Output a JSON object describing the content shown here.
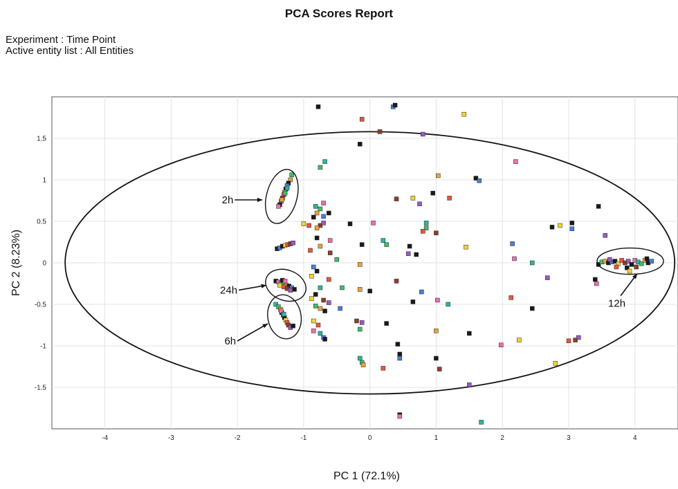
{
  "report": {
    "title": "PCA Scores Report",
    "experiment_label": "Experiment : Time Point",
    "entity_list_label": "Active entity list : All Entities"
  },
  "chart_data": {
    "type": "scatter",
    "xlabel": "PC 1 (72.1%)",
    "ylabel": "PC 2 (8.23%)",
    "xlim": [
      -4.8,
      4.65
    ],
    "ylim": [
      -2.0,
      2.0
    ],
    "xticks": [
      -4,
      -3,
      -2,
      -1,
      0,
      1,
      2,
      3,
      4
    ],
    "yticks": [
      -1.5,
      -1,
      -0.5,
      0,
      0.5,
      1,
      1.5
    ],
    "xtick_labels": [
      "-4",
      "-3",
      "-2",
      "-1",
      "0",
      "1",
      "2",
      "3",
      "4"
    ],
    "ytick_labels": [
      "-1.5",
      "-1",
      "-0.5",
      "0",
      "0.5",
      "1",
      "1.5"
    ],
    "grid": true,
    "point_colors": [
      "#1a1a1a",
      "#1a1a1a",
      "#1a1a1a",
      "#2bb5a0",
      "#e8553f",
      "#e8a33c",
      "#9b59c6",
      "#4a7fd4",
      "#e96fb1",
      "#f2d232",
      "#3cbf6a",
      "#8c3f2a"
    ],
    "points": [
      [
        -0.78,
        1.88
      ],
      [
        0.35,
        1.88
      ],
      [
        0.38,
        1.9
      ],
      [
        1.42,
        1.79
      ],
      [
        -0.12,
        1.73
      ],
      [
        0.15,
        1.58
      ],
      [
        0.8,
        1.55
      ],
      [
        -0.15,
        1.43
      ],
      [
        2.2,
        1.22
      ],
      [
        -0.68,
        1.22
      ],
      [
        -0.75,
        1.15
      ],
      [
        1.03,
        1.05
      ],
      [
        1.6,
        1.02
      ],
      [
        1.65,
        0.99
      ],
      [
        0.95,
        0.84
      ],
      [
        0.65,
        0.78
      ],
      [
        1.2,
        0.78
      ],
      [
        0.4,
        0.77
      ],
      [
        0.75,
        0.71
      ],
      [
        3.45,
        0.68
      ],
      [
        -0.7,
        0.72
      ],
      [
        -0.82,
        0.68
      ],
      [
        -0.75,
        0.65
      ],
      [
        -0.8,
        0.6
      ],
      [
        -0.62,
        0.6
      ],
      [
        -0.7,
        0.56
      ],
      [
        -0.85,
        0.55
      ],
      [
        -1.0,
        0.47
      ],
      [
        -0.92,
        0.45
      ],
      [
        -0.75,
        0.45
      ],
      [
        -0.7,
        0.48
      ],
      [
        -0.3,
        0.47
      ],
      [
        0.05,
        0.48
      ],
      [
        0.85,
        0.48
      ],
      [
        0.85,
        0.42
      ],
      [
        -0.8,
        0.42
      ],
      [
        3.05,
        0.48
      ],
      [
        3.05,
        0.41
      ],
      [
        2.75,
        0.43
      ],
      [
        2.87,
        0.45
      ],
      [
        0.8,
        0.38
      ],
      [
        1.0,
        0.36
      ],
      [
        3.55,
        0.33
      ],
      [
        -0.8,
        0.3
      ],
      [
        -0.6,
        0.27
      ],
      [
        0.2,
        0.27
      ],
      [
        0.25,
        0.22
      ],
      [
        -0.75,
        0.2
      ],
      [
        -0.12,
        0.22
      ],
      [
        2.15,
        0.23
      ],
      [
        0.6,
        0.2
      ],
      [
        1.45,
        0.19
      ],
      [
        -0.9,
        0.15
      ],
      [
        -0.6,
        0.12
      ],
      [
        0.58,
        0.11
      ],
      [
        0.7,
        0.1
      ],
      [
        2.18,
        0.05
      ],
      [
        2.45,
        0.0
      ],
      [
        -0.5,
        0.04
      ],
      [
        -0.15,
        -0.02
      ],
      [
        3.45,
        -0.02
      ],
      [
        -0.85,
        -0.05
      ],
      [
        -0.8,
        -0.1
      ],
      [
        -0.88,
        -0.16
      ],
      [
        -0.62,
        -0.2
      ],
      [
        0.4,
        -0.22
      ],
      [
        2.68,
        -0.18
      ],
      [
        3.4,
        -0.2
      ],
      [
        3.42,
        -0.25
      ],
      [
        -0.75,
        -0.3
      ],
      [
        -0.42,
        -0.3
      ],
      [
        -0.15,
        -0.32
      ],
      [
        0.0,
        -0.34
      ],
      [
        0.78,
        -0.35
      ],
      [
        -0.82,
        -0.38
      ],
      [
        -0.88,
        -0.43
      ],
      [
        2.13,
        -0.42
      ],
      [
        -0.7,
        -0.45
      ],
      [
        -0.62,
        -0.48
      ],
      [
        0.65,
        -0.47
      ],
      [
        1.02,
        -0.45
      ],
      [
        1.18,
        -0.5
      ],
      [
        -0.82,
        -0.52
      ],
      [
        -0.75,
        -0.55
      ],
      [
        -0.68,
        -0.58
      ],
      [
        -0.45,
        -0.55
      ],
      [
        2.45,
        -0.55
      ],
      [
        -0.85,
        -0.7
      ],
      [
        -0.78,
        -0.75
      ],
      [
        -0.2,
        -0.7
      ],
      [
        -0.12,
        -0.72
      ],
      [
        0.25,
        -0.73
      ],
      [
        -0.85,
        -0.82
      ],
      [
        -0.75,
        -0.85
      ],
      [
        -0.15,
        -0.8
      ],
      [
        1.0,
        -0.82
      ],
      [
        1.5,
        -0.85
      ],
      [
        -0.7,
        -0.9
      ],
      [
        -0.68,
        -0.92
      ],
      [
        2.25,
        -0.93
      ],
      [
        3.0,
        -0.94
      ],
      [
        3.1,
        -0.93
      ],
      [
        3.15,
        -0.9
      ],
      [
        0.42,
        -0.98
      ],
      [
        1.98,
        -0.99
      ],
      [
        -0.15,
        -1.15
      ],
      [
        -0.12,
        -1.2
      ],
      [
        -0.1,
        -1.23
      ],
      [
        0.45,
        -1.1
      ],
      [
        0.45,
        -1.15
      ],
      [
        1.0,
        -1.15
      ],
      [
        2.8,
        -1.21
      ],
      [
        0.2,
        -1.27
      ],
      [
        1.05,
        -1.28
      ],
      [
        1.5,
        -1.47
      ],
      [
        0.45,
        -1.83
      ],
      [
        0.45,
        -1.85
      ],
      [
        1.68,
        -1.92
      ]
    ],
    "clusters": [
      {
        "label": "2h",
        "center": [
          -1.33,
          0.8
        ],
        "points": [
          [
            -1.18,
            1.06
          ],
          [
            -1.2,
            1.0
          ],
          [
            -1.23,
            0.96
          ],
          [
            -1.25,
            0.93
          ],
          [
            -1.27,
            0.89
          ],
          [
            -1.29,
            0.85
          ],
          [
            -1.3,
            0.82
          ],
          [
            -1.32,
            0.78
          ],
          [
            -1.34,
            0.74
          ],
          [
            -1.36,
            0.7
          ],
          [
            -1.38,
            0.68
          ],
          [
            -1.25,
            0.9
          ],
          [
            -1.28,
            0.84
          ],
          [
            -1.33,
            0.76
          ]
        ]
      },
      {
        "label": "",
        "center": [
          -1.28,
          0.2
        ],
        "points": [
          [
            -1.4,
            0.17
          ],
          [
            -1.36,
            0.18
          ],
          [
            -1.32,
            0.2
          ],
          [
            -1.28,
            0.21
          ],
          [
            -1.24,
            0.22
          ],
          [
            -1.2,
            0.23
          ],
          [
            -1.16,
            0.24
          ]
        ]
      },
      {
        "label": "24h",
        "center": [
          -1.27,
          -0.27
        ],
        "points": [
          [
            -1.42,
            -0.22
          ],
          [
            -1.38,
            -0.23
          ],
          [
            -1.34,
            -0.24
          ],
          [
            -1.3,
            -0.25
          ],
          [
            -1.26,
            -0.27
          ],
          [
            -1.22,
            -0.28
          ],
          [
            -1.18,
            -0.3
          ],
          [
            -1.14,
            -0.32
          ],
          [
            -1.36,
            -0.27
          ],
          [
            -1.3,
            -0.29
          ],
          [
            -1.25,
            -0.31
          ],
          [
            -1.2,
            -0.33
          ],
          [
            -1.32,
            -0.21
          ],
          [
            -1.28,
            -0.22
          ]
        ]
      },
      {
        "label": "6h",
        "center": [
          -1.29,
          -0.65
        ],
        "points": [
          [
            -1.42,
            -0.5
          ],
          [
            -1.38,
            -0.53
          ],
          [
            -1.35,
            -0.56
          ],
          [
            -1.33,
            -0.6
          ],
          [
            -1.31,
            -0.63
          ],
          [
            -1.29,
            -0.66
          ],
          [
            -1.27,
            -0.69
          ],
          [
            -1.25,
            -0.72
          ],
          [
            -1.23,
            -0.75
          ],
          [
            -1.2,
            -0.78
          ],
          [
            -1.16,
            -0.76
          ],
          [
            -1.34,
            -0.58
          ],
          [
            -1.3,
            -0.62
          ]
        ]
      },
      {
        "label": "12h",
        "center": [
          3.93,
          0.02
        ],
        "points": [
          [
            3.5,
            0.01
          ],
          [
            3.55,
            0.02
          ],
          [
            3.6,
            0.0
          ],
          [
            3.65,
            0.01
          ],
          [
            3.7,
            0.02
          ],
          [
            3.75,
            -0.01
          ],
          [
            3.8,
            0.03
          ],
          [
            3.85,
            0.0
          ],
          [
            3.9,
            0.02
          ],
          [
            3.95,
            -0.02
          ],
          [
            4.0,
            0.03
          ],
          [
            4.05,
            0.01
          ],
          [
            4.1,
            -0.01
          ],
          [
            4.15,
            0.03
          ],
          [
            4.2,
            0.0
          ],
          [
            4.25,
            0.02
          ],
          [
            3.88,
            -0.06
          ],
          [
            3.92,
            -0.1
          ],
          [
            3.72,
            -0.05
          ],
          [
            4.02,
            -0.05
          ],
          [
            3.62,
            0.04
          ],
          [
            4.18,
            0.05
          ]
        ]
      }
    ],
    "confidence_ellipse": {
      "center": [
        0.0,
        0.0
      ],
      "semi_axes": [
        4.6,
        1.58
      ]
    }
  }
}
